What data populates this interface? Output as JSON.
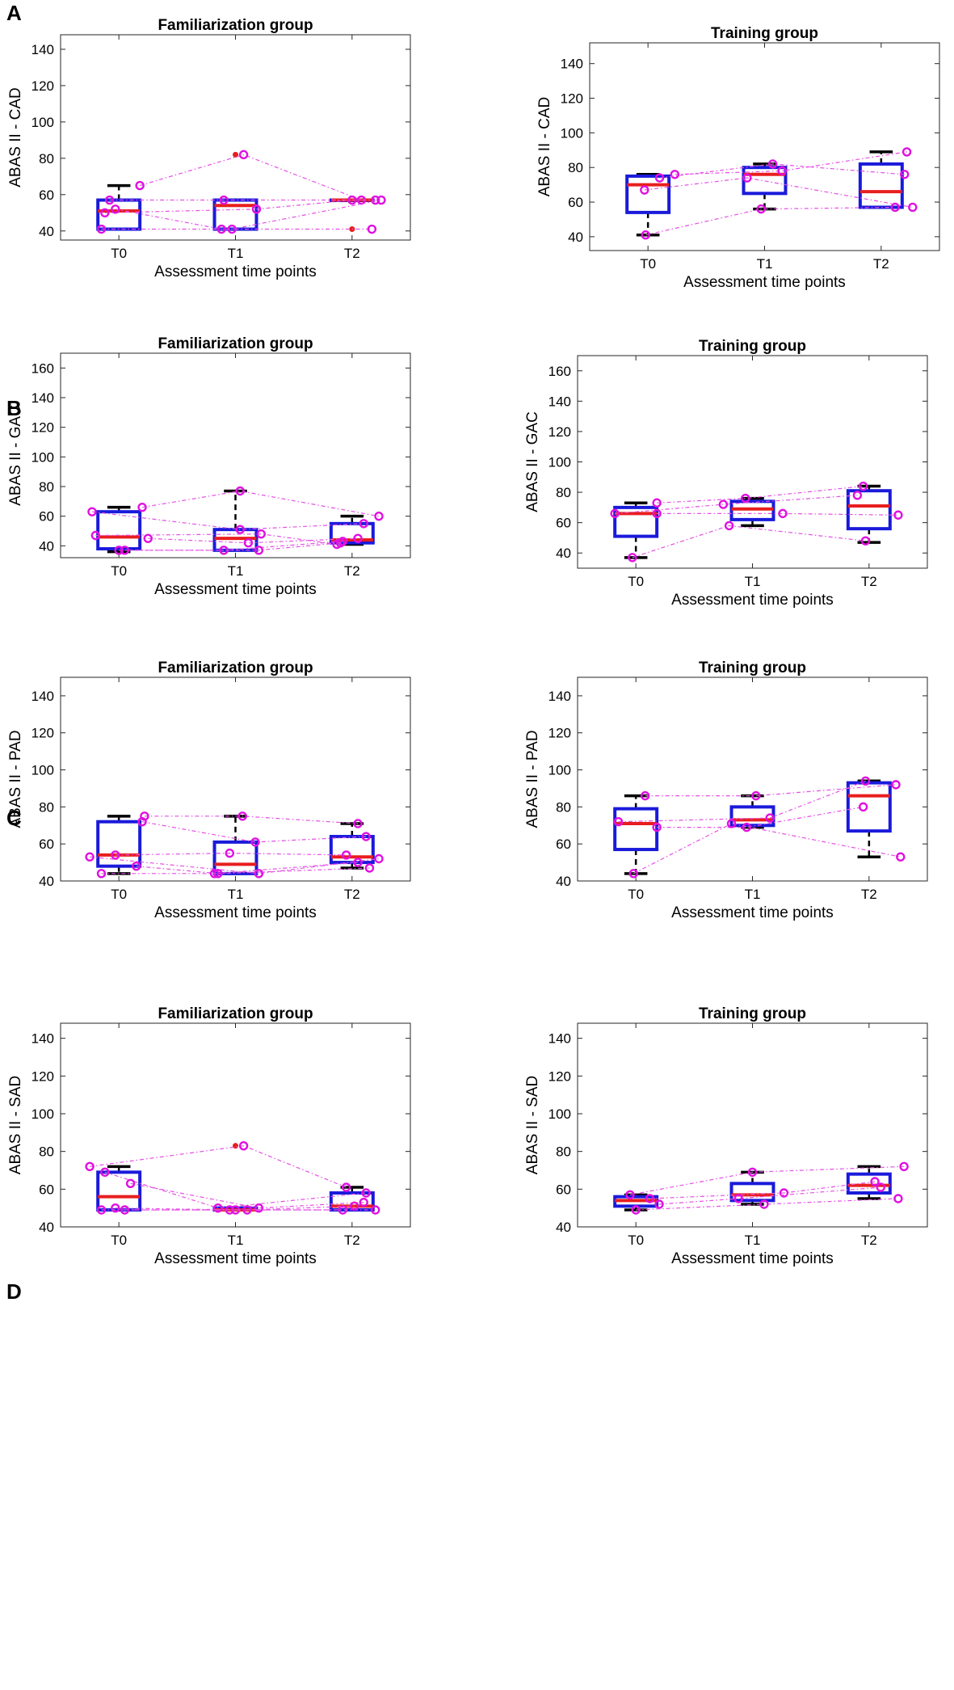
{
  "figure": {
    "panels": [
      {
        "letter": "A"
      },
      {
        "letter": "B"
      },
      {
        "letter": "C"
      },
      {
        "letter": "D"
      }
    ]
  },
  "chart_data": [
    {
      "type": "box",
      "panel": "A",
      "side": "left",
      "title": "Familiarization group",
      "xlabel": "Assessment time points",
      "ylabel": "ABAS II - CAD",
      "categories": [
        "T0",
        "T1",
        "T2"
      ],
      "ylim": [
        35,
        148
      ],
      "yticks": [
        40,
        60,
        80,
        100,
        120,
        140
      ],
      "boxes": [
        {
          "q1": 41,
          "median": 51,
          "q3": 57,
          "whisker_low": 41,
          "whisker_high": 65,
          "outliers": []
        },
        {
          "q1": 41,
          "median": 54,
          "q3": 57,
          "whisker_low": 41,
          "whisker_high": 57,
          "outliers": [
            82
          ]
        },
        {
          "q1": 57,
          "median": 57,
          "q3": 57,
          "whisker_low": 57,
          "whisker_high": 57,
          "outliers": [
            41
          ]
        }
      ],
      "subjects": [
        [
          {
            "x": 1.18,
            "y": 65
          },
          {
            "x": 2.07,
            "y": 82
          },
          {
            "x": 3.08,
            "y": 57
          }
        ],
        [
          {
            "x": 0.92,
            "y": 57
          },
          {
            "x": 1.9,
            "y": 57
          },
          {
            "x": 3.2,
            "y": 57
          }
        ],
        [
          {
            "x": 0.88,
            "y": 50
          },
          {
            "x": 2.18,
            "y": 52
          },
          {
            "x": 3.0,
            "y": 57
          }
        ],
        [
          {
            "x": 0.85,
            "y": 41
          },
          {
            "x": 1.97,
            "y": 41
          },
          {
            "x": 3.25,
            "y": 57
          }
        ],
        [
          {
            "x": 0.97,
            "y": 52
          },
          {
            "x": 1.88,
            "y": 41
          },
          {
            "x": 3.17,
            "y": 41
          }
        ]
      ]
    },
    {
      "type": "box",
      "panel": "A",
      "side": "right",
      "title": "Training group",
      "xlabel": "Assessment time points",
      "ylabel": "ABAS II - CAD",
      "categories": [
        "T0",
        "T1",
        "T2"
      ],
      "ylim": [
        32,
        152
      ],
      "yticks": [
        40,
        60,
        80,
        100,
        120,
        140
      ],
      "boxes": [
        {
          "q1": 54,
          "median": 70,
          "q3": 75,
          "whisker_low": 41,
          "whisker_high": 76,
          "outliers": []
        },
        {
          "q1": 65,
          "median": 76,
          "q3": 80,
          "whisker_low": 56,
          "whisker_high": 82,
          "outliers": []
        },
        {
          "q1": 57,
          "median": 66,
          "q3": 82,
          "whisker_low": 57,
          "whisker_high": 89,
          "outliers": []
        }
      ],
      "subjects": [
        [
          {
            "x": 1.23,
            "y": 76
          },
          {
            "x": 2.15,
            "y": 78
          },
          {
            "x": 3.22,
            "y": 89
          }
        ],
        [
          {
            "x": 1.1,
            "y": 74
          },
          {
            "x": 2.07,
            "y": 82
          },
          {
            "x": 3.2,
            "y": 76
          }
        ],
        [
          {
            "x": 0.97,
            "y": 67
          },
          {
            "x": 1.85,
            "y": 74
          },
          {
            "x": 3.27,
            "y": 57
          }
        ],
        [
          {
            "x": 0.98,
            "y": 41
          },
          {
            "x": 1.97,
            "y": 56
          },
          {
            "x": 3.12,
            "y": 57
          }
        ]
      ]
    },
    {
      "type": "box",
      "panel": "B",
      "side": "left",
      "title": "Familiarization group",
      "xlabel": "Assessment time points",
      "ylabel": "ABAS II - GAC",
      "categories": [
        "T0",
        "T1",
        "T2"
      ],
      "ylim": [
        32,
        170
      ],
      "yticks": [
        40,
        60,
        80,
        100,
        120,
        140,
        160
      ],
      "boxes": [
        {
          "q1": 38,
          "median": 46,
          "q3": 63,
          "whisker_low": 36,
          "whisker_high": 66,
          "outliers": []
        },
        {
          "q1": 37,
          "median": 45,
          "q3": 51,
          "whisker_low": 37,
          "whisker_high": 77,
          "outliers": []
        },
        {
          "q1": 42,
          "median": 44,
          "q3": 55,
          "whisker_low": 41,
          "whisker_high": 60,
          "outliers": []
        }
      ],
      "subjects": [
        [
          {
            "x": 1.2,
            "y": 66
          },
          {
            "x": 2.04,
            "y": 77
          },
          {
            "x": 3.23,
            "y": 60
          }
        ],
        [
          {
            "x": 0.77,
            "y": 63
          },
          {
            "x": 2.04,
            "y": 51
          },
          {
            "x": 3.1,
            "y": 55
          }
        ],
        [
          {
            "x": 0.8,
            "y": 47
          },
          {
            "x": 2.22,
            "y": 48
          },
          {
            "x": 2.87,
            "y": 41
          }
        ],
        [
          {
            "x": 1.25,
            "y": 45
          },
          {
            "x": 2.11,
            "y": 42
          },
          {
            "x": 3.05,
            "y": 45
          }
        ],
        [
          {
            "x": 1.0,
            "y": 37
          },
          {
            "x": 1.9,
            "y": 37
          },
          {
            "x": 2.92,
            "y": 43
          }
        ],
        [
          {
            "x": 1.05,
            "y": 37
          },
          {
            "x": 2.2,
            "y": 37
          },
          {
            "x": 2.9,
            "y": 42
          }
        ]
      ]
    },
    {
      "type": "box",
      "panel": "B",
      "side": "right",
      "title": "Training group",
      "xlabel": "Assessment time points",
      "ylabel": "ABAS II - GAC",
      "categories": [
        "T0",
        "T1",
        "T2"
      ],
      "ylim": [
        30,
        170
      ],
      "yticks": [
        40,
        60,
        80,
        100,
        120,
        140,
        160
      ],
      "boxes": [
        {
          "q1": 51,
          "median": 66,
          "q3": 70,
          "whisker_low": 37,
          "whisker_high": 73,
          "outliers": []
        },
        {
          "q1": 62,
          "median": 69,
          "q3": 74,
          "whisker_low": 58,
          "whisker_high": 76,
          "outliers": []
        },
        {
          "q1": 56,
          "median": 71,
          "q3": 81,
          "whisker_low": 47,
          "whisker_high": 84,
          "outliers": []
        }
      ],
      "subjects": [
        [
          {
            "x": 1.18,
            "y": 73
          },
          {
            "x": 1.94,
            "y": 76
          },
          {
            "x": 2.95,
            "y": 84
          }
        ],
        [
          {
            "x": 0.82,
            "y": 66
          },
          {
            "x": 1.75,
            "y": 72
          },
          {
            "x": 2.9,
            "y": 78
          }
        ],
        [
          {
            "x": 1.18,
            "y": 66
          },
          {
            "x": 2.26,
            "y": 66
          },
          {
            "x": 3.25,
            "y": 65
          }
        ],
        [
          {
            "x": 0.97,
            "y": 37
          },
          {
            "x": 1.8,
            "y": 58
          },
          {
            "x": 2.97,
            "y": 48
          }
        ]
      ]
    },
    {
      "type": "box",
      "panel": "C",
      "side": "left",
      "title": "Familiarization group",
      "xlabel": "Assessment time points",
      "ylabel": "ABAS II - PAD",
      "categories": [
        "T0",
        "T1",
        "T2"
      ],
      "ylim": [
        40,
        150
      ],
      "yticks": [
        40,
        60,
        80,
        100,
        120,
        140
      ],
      "boxes": [
        {
          "q1": 48,
          "median": 54,
          "q3": 72,
          "whisker_low": 44,
          "whisker_high": 75,
          "outliers": []
        },
        {
          "q1": 44,
          "median": 49,
          "q3": 61,
          "whisker_low": 44,
          "whisker_high": 75,
          "outliers": []
        },
        {
          "q1": 50,
          "median": 53,
          "q3": 64,
          "whisker_low": 47,
          "whisker_high": 71,
          "outliers": []
        }
      ],
      "subjects": [
        [
          {
            "x": 1.22,
            "y": 75
          },
          {
            "x": 2.06,
            "y": 75
          },
          {
            "x": 3.05,
            "y": 71
          }
        ],
        [
          {
            "x": 1.2,
            "y": 72
          },
          {
            "x": 2.17,
            "y": 61
          },
          {
            "x": 3.12,
            "y": 64
          }
        ],
        [
          {
            "x": 0.97,
            "y": 54
          },
          {
            "x": 1.95,
            "y": 55
          },
          {
            "x": 2.95,
            "y": 54
          }
        ],
        [
          {
            "x": 0.75,
            "y": 53
          },
          {
            "x": 2.2,
            "y": 44
          },
          {
            "x": 3.23,
            "y": 52
          }
        ],
        [
          {
            "x": 1.15,
            "y": 48
          },
          {
            "x": 1.85,
            "y": 44
          },
          {
            "x": 3.15,
            "y": 47
          }
        ],
        [
          {
            "x": 0.85,
            "y": 44
          },
          {
            "x": 1.82,
            "y": 44
          },
          {
            "x": 3.05,
            "y": 50
          }
        ]
      ]
    },
    {
      "type": "box",
      "panel": "C",
      "side": "right",
      "title": "Training group",
      "xlabel": "Assessment time points",
      "ylabel": "ABAS II - PAD",
      "categories": [
        "T0",
        "T1",
        "T2"
      ],
      "ylim": [
        40,
        150
      ],
      "yticks": [
        40,
        60,
        80,
        100,
        120,
        140
      ],
      "boxes": [
        {
          "q1": 57,
          "median": 71,
          "q3": 79,
          "whisker_low": 44,
          "whisker_high": 86,
          "outliers": []
        },
        {
          "q1": 70,
          "median": 73,
          "q3": 80,
          "whisker_low": 69,
          "whisker_high": 86,
          "outliers": []
        },
        {
          "q1": 67,
          "median": 86,
          "q3": 93,
          "whisker_low": 53,
          "whisker_high": 94,
          "outliers": []
        }
      ],
      "subjects": [
        [
          {
            "x": 1.08,
            "y": 86
          },
          {
            "x": 2.03,
            "y": 86
          },
          {
            "x": 3.23,
            "y": 92
          }
        ],
        [
          {
            "x": 0.85,
            "y": 72
          },
          {
            "x": 2.15,
            "y": 74
          },
          {
            "x": 2.97,
            "y": 94
          }
        ],
        [
          {
            "x": 1.18,
            "y": 69
          },
          {
            "x": 1.95,
            "y": 69
          },
          {
            "x": 2.95,
            "y": 80
          }
        ],
        [
          {
            "x": 0.98,
            "y": 44
          },
          {
            "x": 1.82,
            "y": 71
          },
          {
            "x": 3.27,
            "y": 53
          }
        ]
      ]
    },
    {
      "type": "box",
      "panel": "D",
      "side": "left",
      "title": "Familiarization group",
      "xlabel": "Assessment time points",
      "ylabel": "ABAS II - SAD",
      "categories": [
        "T0",
        "T1",
        "T2"
      ],
      "ylim": [
        40,
        148
      ],
      "yticks": [
        40,
        60,
        80,
        100,
        120,
        140
      ],
      "boxes": [
        {
          "q1": 49,
          "median": 56,
          "q3": 69,
          "whisker_low": 49,
          "whisker_high": 72,
          "outliers": []
        },
        {
          "q1": 49,
          "median": 49,
          "q3": 50,
          "whisker_low": 49,
          "whisker_high": 50,
          "outliers": [
            83
          ]
        },
        {
          "q1": 49,
          "median": 51,
          "q3": 58,
          "whisker_low": 49,
          "whisker_high": 61,
          "outliers": []
        }
      ],
      "subjects": [
        [
          {
            "x": 0.75,
            "y": 72
          },
          {
            "x": 2.07,
            "y": 83
          },
          {
            "x": 2.95,
            "y": 61
          }
        ],
        [
          {
            "x": 0.88,
            "y": 69
          },
          {
            "x": 1.85,
            "y": 50
          },
          {
            "x": 3.12,
            "y": 58
          }
        ],
        [
          {
            "x": 1.1,
            "y": 63
          },
          {
            "x": 2.2,
            "y": 50
          },
          {
            "x": 3.1,
            "y": 53
          }
        ],
        [
          {
            "x": 0.97,
            "y": 50
          },
          {
            "x": 2.0,
            "y": 49
          },
          {
            "x": 2.92,
            "y": 49
          }
        ],
        [
          {
            "x": 0.85,
            "y": 49
          },
          {
            "x": 1.95,
            "y": 49
          },
          {
            "x": 3.2,
            "y": 49
          }
        ],
        [
          {
            "x": 1.05,
            "y": 49
          },
          {
            "x": 2.1,
            "y": 49
          },
          {
            "x": 3.02,
            "y": 51
          }
        ]
      ]
    },
    {
      "type": "box",
      "panel": "D",
      "side": "right",
      "title": "Training group",
      "xlabel": "Assessment time points",
      "ylabel": "ABAS II - SAD",
      "categories": [
        "T0",
        "T1",
        "T2"
      ],
      "ylim": [
        40,
        148
      ],
      "yticks": [
        40,
        60,
        80,
        100,
        120,
        140
      ],
      "boxes": [
        {
          "q1": 51,
          "median": 54,
          "q3": 56,
          "whisker_low": 49,
          "whisker_high": 57,
          "outliers": []
        },
        {
          "q1": 54,
          "median": 57,
          "q3": 63,
          "whisker_low": 52,
          "whisker_high": 69,
          "outliers": []
        },
        {
          "q1": 58,
          "median": 62,
          "q3": 68,
          "whisker_low": 55,
          "whisker_high": 72,
          "outliers": []
        }
      ],
      "subjects": [
        [
          {
            "x": 0.95,
            "y": 57
          },
          {
            "x": 2.0,
            "y": 69
          },
          {
            "x": 3.3,
            "y": 72
          }
        ],
        [
          {
            "x": 1.12,
            "y": 55
          },
          {
            "x": 2.27,
            "y": 58
          },
          {
            "x": 3.05,
            "y": 64
          }
        ],
        [
          {
            "x": 1.2,
            "y": 52
          },
          {
            "x": 1.88,
            "y": 55
          },
          {
            "x": 3.1,
            "y": 61
          }
        ],
        [
          {
            "x": 1.0,
            "y": 49
          },
          {
            "x": 2.1,
            "y": 52
          },
          {
            "x": 3.25,
            "y": 55
          }
        ]
      ]
    }
  ]
}
